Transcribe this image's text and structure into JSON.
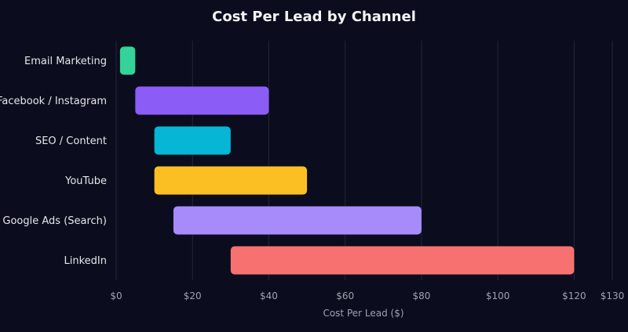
{
  "chart_data": {
    "type": "bar",
    "orientation": "horizontal",
    "variant": "floating-range",
    "title": "Cost Per Lead by Channel",
    "xlabel": "Cost Per Lead ($)",
    "ylabel": "",
    "xlim": [
      0,
      130
    ],
    "x_ticks": [
      0,
      20,
      40,
      60,
      80,
      100,
      120,
      130
    ],
    "x_tick_labels": [
      "$0",
      "$20",
      "$40",
      "$60",
      "$80",
      "$100",
      "$120",
      "$130"
    ],
    "grid": true,
    "legend": "none",
    "categories": [
      "Email Marketing",
      "Facebook / Instagram",
      "SEO / Content",
      "YouTube",
      "Google Ads (Search)",
      "LinkedIn"
    ],
    "ranges": [
      [
        1,
        5
      ],
      [
        5,
        40
      ],
      [
        10,
        30
      ],
      [
        10,
        50
      ],
      [
        15,
        80
      ],
      [
        30,
        120
      ]
    ],
    "colors": [
      "#34d399",
      "#8b5cf6",
      "#06b6d4",
      "#fbbf24",
      "#a78bfa",
      "#f87171"
    ]
  }
}
